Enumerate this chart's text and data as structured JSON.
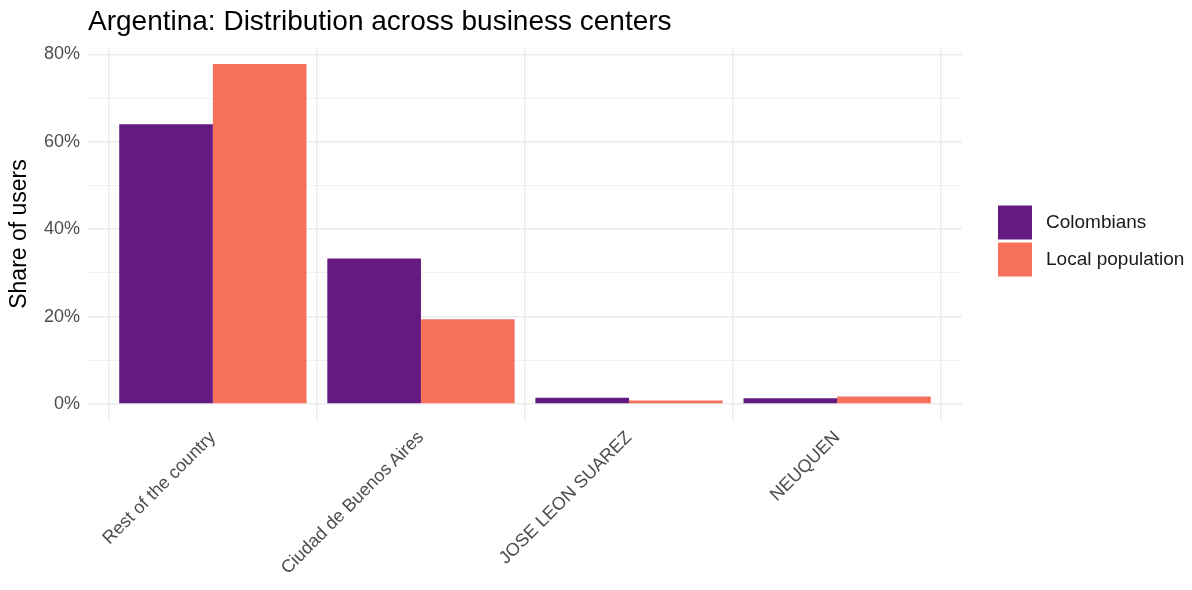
{
  "chart_data": {
    "type": "bar",
    "title": "Argentina: Distribution across business centers",
    "ylabel": "Share of users",
    "categories": [
      "Rest of the country",
      "Ciudad de Buenos Aires",
      "JOSE LEON SUAREZ",
      "NEUQUEN"
    ],
    "series": [
      {
        "name": "Colombians",
        "color": "#641a80",
        "values": [
          64.0,
          33.3,
          1.4,
          1.3
        ]
      },
      {
        "name": "Local population",
        "color": "#f6705c",
        "values": [
          77.8,
          19.4,
          0.8,
          1.7
        ]
      }
    ],
    "ylim": [
      -3.9,
      81.7
    ],
    "yticks": [
      {
        "value": 0,
        "label": "0%"
      },
      {
        "value": 10,
        "label": null
      },
      {
        "value": 20,
        "label": "20%"
      },
      {
        "value": 30,
        "label": null
      },
      {
        "value": 40,
        "label": "40%"
      },
      {
        "value": 50,
        "label": null
      },
      {
        "value": 60,
        "label": "60%"
      },
      {
        "value": 70,
        "label": null
      },
      {
        "value": 80,
        "label": "80%"
      }
    ],
    "grid": true,
    "legend": "right"
  }
}
